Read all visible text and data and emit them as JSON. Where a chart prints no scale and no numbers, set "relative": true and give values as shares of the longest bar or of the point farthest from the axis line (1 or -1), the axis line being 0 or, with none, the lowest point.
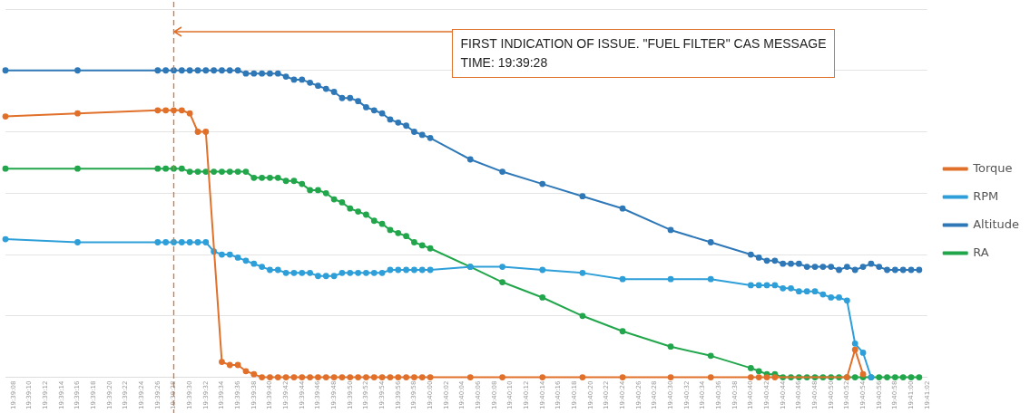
{
  "chart_data": {
    "type": "line",
    "relative": true,
    "grid": "y",
    "legend": "right",
    "marker": "circle",
    "line_style": "solid",
    "categories": [
      null,
      "19:39:08",
      null,
      "19:39:10",
      null,
      "19:39:12",
      null,
      "19:39:14",
      null,
      "19:39:16",
      null,
      "19:39:18",
      null,
      "19:39:20",
      null,
      "19:39:22",
      null,
      "19:39:24",
      null,
      "19:39:26",
      null,
      "19:39:28",
      null,
      "19:39:30",
      null,
      "19:39:32",
      null,
      "19:39:34",
      null,
      "19:39:36",
      null,
      "19:39:38",
      null,
      "19:39:40",
      null,
      "19:39:42",
      null,
      "19:39:44",
      null,
      "19:39:46",
      null,
      "19:39:48",
      null,
      "19:39:50",
      null,
      "19:39:52",
      null,
      "19:39:54",
      null,
      "19:39:56",
      null,
      "19:39:58",
      null,
      "19:40:00",
      null,
      "19:40:02",
      null,
      "19:40:04",
      null,
      "19:40:06",
      null,
      "19:40:08",
      null,
      "19:40:10",
      null,
      "19:40:12",
      null,
      "19:40:14",
      null,
      "19:40:16",
      null,
      "19:40:18",
      null,
      "19:40:20",
      null,
      "19:40:22",
      null,
      "19:40:24",
      null,
      "19:40:26",
      null,
      "19:40:28",
      null,
      "19:40:30",
      null,
      "19:40:32",
      null,
      "19:40:34",
      null,
      "19:40:36",
      null,
      "19:40:38",
      null,
      "19:40:40",
      null,
      "19:40:42",
      null,
      "19:40:44",
      null,
      "19:40:46",
      null,
      "19:40:48",
      null,
      "19:40:50",
      null,
      "19:40:52",
      null,
      "19:40:54",
      null,
      "19:40:56",
      null,
      "19:40:58",
      null,
      "19:41:00",
      null,
      "19:41:02"
    ],
    "series": [
      {
        "name": "Torque",
        "color": "#e0702a",
        "values": [
          0.85,
          null,
          null,
          null,
          null,
          null,
          null,
          null,
          null,
          0.86,
          null,
          null,
          null,
          null,
          null,
          null,
          null,
          null,
          null,
          0.87,
          0.87,
          0.87,
          0.87,
          0.86,
          0.8,
          0.8,
          null,
          0.05,
          0.04,
          0.04,
          0.02,
          0.01,
          0,
          0,
          0,
          0,
          0,
          0,
          0,
          0,
          0,
          0,
          0,
          0,
          0,
          0,
          0,
          0,
          0,
          0,
          0,
          0,
          0,
          0,
          null,
          null,
          null,
          null,
          0,
          null,
          null,
          null,
          0,
          null,
          null,
          null,
          null,
          0,
          null,
          null,
          null,
          null,
          0,
          null,
          null,
          null,
          null,
          0,
          null,
          null,
          null,
          null,
          null,
          0,
          null,
          null,
          null,
          null,
          0,
          null,
          null,
          null,
          null,
          0,
          0,
          0,
          0,
          null,
          null,
          null,
          null,
          null,
          null,
          null,
          null,
          0,
          0.09,
          0.01,
          null,
          null,
          null,
          null,
          null,
          null,
          null,
          null
        ]
      },
      {
        "name": "RPM",
        "color": "#2e9fd8",
        "values": [
          0.45,
          null,
          null,
          null,
          null,
          null,
          null,
          null,
          null,
          0.44,
          null,
          null,
          null,
          null,
          null,
          null,
          null,
          null,
          null,
          0.44,
          0.44,
          0.44,
          0.44,
          0.44,
          0.44,
          0.44,
          0.41,
          0.4,
          0.4,
          0.39,
          0.38,
          0.37,
          0.36,
          0.35,
          0.35,
          0.34,
          0.34,
          0.34,
          0.34,
          0.33,
          0.33,
          0.33,
          0.34,
          0.34,
          0.34,
          0.34,
          0.34,
          0.34,
          0.35,
          0.35,
          0.35,
          0.35,
          0.35,
          0.35,
          null,
          null,
          null,
          null,
          0.36,
          null,
          null,
          null,
          0.36,
          null,
          null,
          null,
          null,
          0.35,
          null,
          null,
          null,
          null,
          0.34,
          null,
          null,
          null,
          null,
          0.32,
          null,
          null,
          null,
          null,
          null,
          0.32,
          null,
          null,
          null,
          null,
          0.32,
          null,
          null,
          null,
          null,
          0.3,
          0.3,
          0.3,
          0.3,
          0.29,
          0.29,
          0.28,
          0.28,
          0.28,
          0.27,
          0.26,
          0.26,
          0.25,
          0.11,
          0.08,
          0,
          null,
          null,
          null,
          null,
          null,
          null,
          null
        ]
      },
      {
        "name": "Altitude",
        "color": "#2f78b7",
        "values": [
          1.0,
          null,
          null,
          null,
          null,
          null,
          null,
          null,
          null,
          1.0,
          null,
          null,
          null,
          null,
          null,
          null,
          null,
          null,
          null,
          1.0,
          1.0,
          1.0,
          1.0,
          1.0,
          1.0,
          1.0,
          1.0,
          1.0,
          1.0,
          1.0,
          0.99,
          0.99,
          0.99,
          0.99,
          0.99,
          0.98,
          0.97,
          0.97,
          0.96,
          0.95,
          0.94,
          0.93,
          0.91,
          0.91,
          0.9,
          0.88,
          0.87,
          0.86,
          0.84,
          0.83,
          0.82,
          0.8,
          0.79,
          0.78,
          null,
          null,
          null,
          null,
          0.71,
          null,
          null,
          null,
          0.67,
          null,
          null,
          null,
          null,
          0.63,
          null,
          null,
          null,
          null,
          0.59,
          null,
          null,
          null,
          null,
          0.55,
          null,
          null,
          null,
          null,
          null,
          0.48,
          null,
          null,
          null,
          null,
          0.44,
          null,
          null,
          null,
          null,
          0.4,
          0.39,
          0.38,
          0.38,
          0.37,
          0.37,
          0.37,
          0.36,
          0.36,
          0.36,
          0.36,
          0.35,
          0.36,
          0.35,
          0.36,
          0.37,
          0.36,
          0.35,
          0.35,
          0.35,
          0.35,
          0.35,
          null
        ]
      },
      {
        "name": "RA",
        "color": "#22a64c",
        "values": [
          0.68,
          null,
          null,
          null,
          null,
          null,
          null,
          null,
          null,
          0.68,
          null,
          null,
          null,
          null,
          null,
          null,
          null,
          null,
          null,
          0.68,
          0.68,
          0.68,
          0.68,
          0.67,
          0.67,
          0.67,
          0.67,
          0.67,
          0.67,
          0.67,
          0.67,
          0.65,
          0.65,
          0.65,
          0.65,
          0.64,
          0.64,
          0.63,
          0.61,
          0.61,
          0.6,
          0.58,
          0.57,
          0.55,
          0.54,
          0.53,
          0.51,
          0.5,
          0.48,
          0.47,
          0.46,
          0.44,
          0.43,
          0.42,
          null,
          null,
          null,
          null,
          0.36,
          null,
          null,
          null,
          0.31,
          null,
          null,
          null,
          null,
          0.26,
          null,
          null,
          null,
          null,
          0.2,
          null,
          null,
          null,
          null,
          0.15,
          null,
          null,
          null,
          null,
          null,
          0.1,
          null,
          null,
          null,
          null,
          0.07,
          null,
          null,
          null,
          null,
          0.03,
          0.02,
          0.01,
          0.01,
          0,
          0,
          0,
          0,
          0,
          0,
          0,
          0,
          0,
          0,
          0,
          0,
          0,
          0,
          0,
          0,
          0,
          0,
          null
        ]
      }
    ],
    "ref_lines": [
      {
        "axis": "x",
        "value": "19:39:28",
        "color": "#e0702a",
        "line_style": "dashed"
      }
    ],
    "annotations": [
      "FIRST INDICATION OF ISSUE. \"FUEL FILTER\" CAS MESSAGE\nTIME: 19:39:28"
    ]
  }
}
